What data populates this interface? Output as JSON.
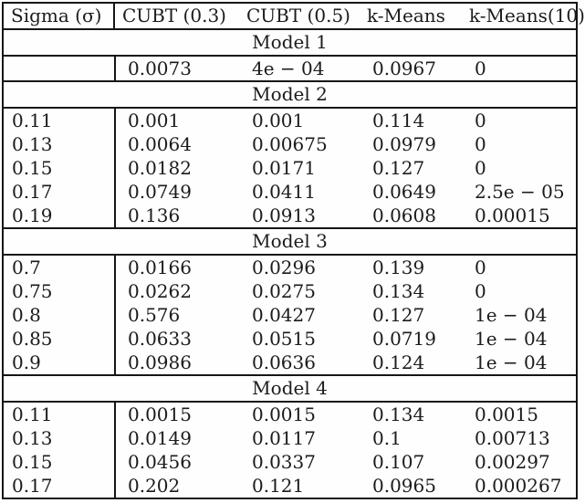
{
  "table": {
    "header": {
      "sigma": "Sigma (σ)",
      "columns": [
        "CUBT (0.3)",
        "CUBT (0.5)",
        "k-Means",
        "k-Means(10)"
      ]
    },
    "sections": [
      {
        "title": "Model 1",
        "rows": [
          {
            "sigma": "",
            "values": [
              "0.0073",
              "4e − 04",
              "0.0967",
              "0"
            ]
          }
        ]
      },
      {
        "title": "Model 2",
        "rows": [
          {
            "sigma": "0.11",
            "values": [
              "0.001",
              "0.001",
              "0.114",
              "0"
            ]
          },
          {
            "sigma": "0.13",
            "values": [
              "0.0064",
              "0.00675",
              "0.0979",
              "0"
            ]
          },
          {
            "sigma": "0.15",
            "values": [
              "0.0182",
              "0.0171",
              "0.127",
              "0"
            ]
          },
          {
            "sigma": "0.17",
            "values": [
              "0.0749",
              "0.0411",
              "0.0649",
              "2.5e − 05"
            ]
          },
          {
            "sigma": "0.19",
            "values": [
              "0.136",
              "0.0913",
              "0.0608",
              "0.00015"
            ]
          }
        ]
      },
      {
        "title": "Model 3",
        "rows": [
          {
            "sigma": "0.7",
            "values": [
              "0.0166",
              "0.0296",
              "0.139",
              "0"
            ]
          },
          {
            "sigma": "0.75",
            "values": [
              "0.0262",
              "0.0275",
              "0.134",
              "0"
            ]
          },
          {
            "sigma": "0.8",
            "values": [
              "0.576",
              "0.0427",
              "0.127",
              "1e − 04"
            ]
          },
          {
            "sigma": "0.85",
            "values": [
              "0.0633",
              "0.0515",
              "0.0719",
              "1e − 04"
            ]
          },
          {
            "sigma": "0.9",
            "values": [
              "0.0986",
              "0.0636",
              "0.124",
              "1e − 04"
            ]
          }
        ]
      },
      {
        "title": "Model 4",
        "rows": [
          {
            "sigma": "0.11",
            "values": [
              "0.0015",
              "0.0015",
              "0.134",
              "0.0015"
            ]
          },
          {
            "sigma": "0.13",
            "values": [
              "0.0149",
              "0.0117",
              "0.1",
              "0.00713"
            ]
          },
          {
            "sigma": "0.15",
            "values": [
              "0.0456",
              "0.0337",
              "0.107",
              "0.00297"
            ]
          },
          {
            "sigma": "0.17",
            "values": [
              "0.202",
              "0.121",
              "0.0965",
              "0.000267"
            ]
          }
        ]
      }
    ]
  },
  "colors": {
    "border": "#161616",
    "text": "#1b1b1b",
    "background": "#fefefe"
  }
}
